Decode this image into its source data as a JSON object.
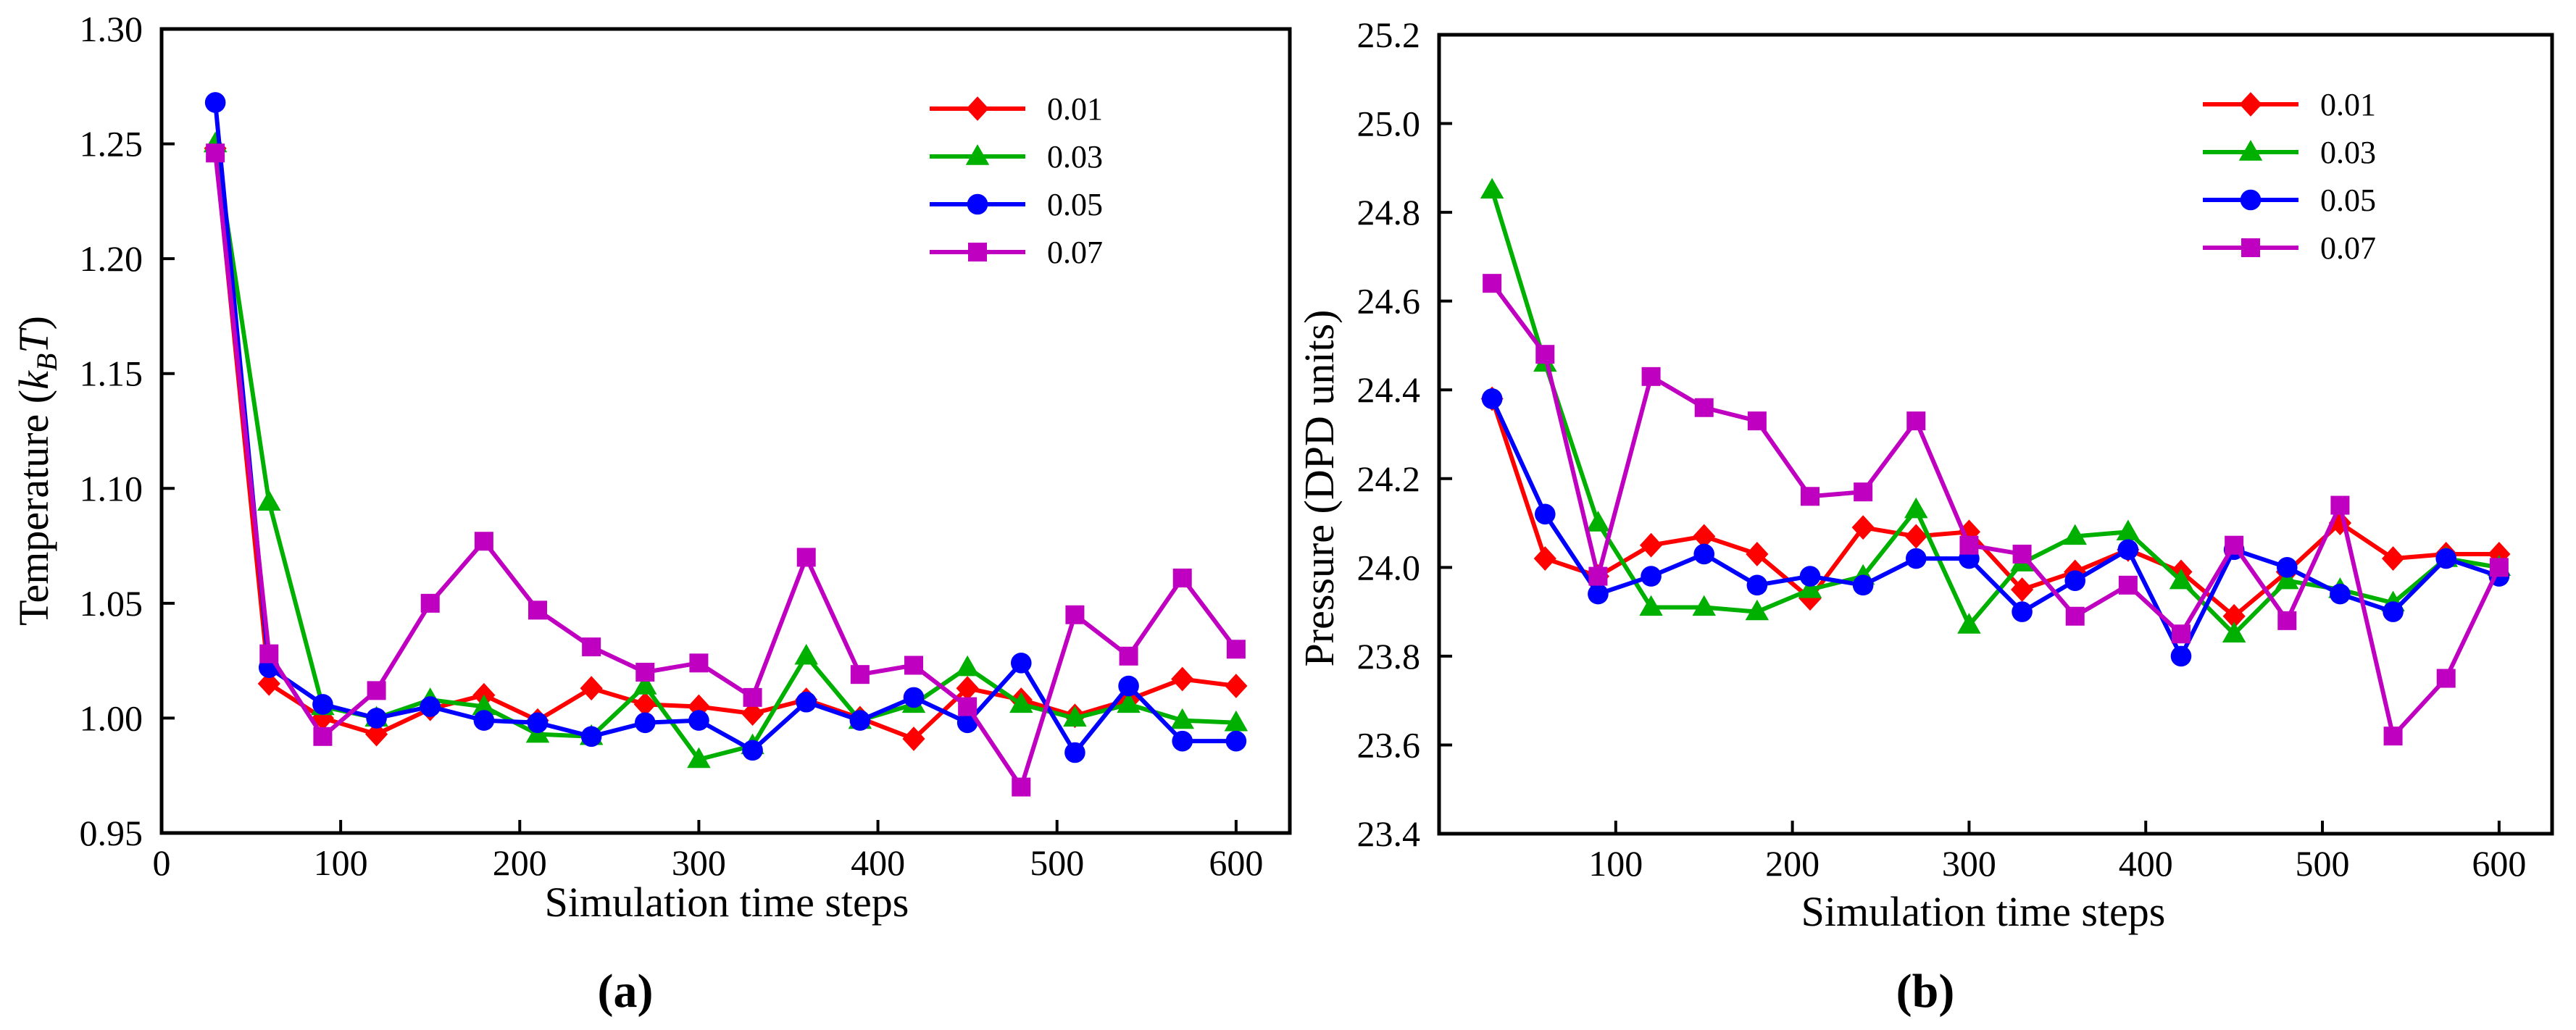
{
  "chart_data": [
    {
      "type": "line",
      "panel_label": "(a)",
      "xlabel": "Simulation time steps",
      "ylabel_main": "Temperature (",
      "ylabel_k": "k",
      "ylabel_sub": "B",
      "ylabel_t": "T",
      "ylabel_close": ")",
      "xlim": [
        0,
        630
      ],
      "ylim": [
        0.95,
        1.3
      ],
      "xticks": [
        0,
        100,
        200,
        300,
        400,
        500,
        600
      ],
      "xtick_labels": [
        "0",
        "100",
        "200",
        "300",
        "400",
        "500",
        "600"
      ],
      "yticks": [
        0.95,
        1.0,
        1.05,
        1.1,
        1.15,
        1.2,
        1.25,
        1.3
      ],
      "ytick_labels": [
        "0.95",
        "1.00",
        "1.05",
        "1.10",
        "1.15",
        "1.20",
        "1.25",
        "1.30"
      ],
      "legend_position": "top-right",
      "grid": false,
      "x": [
        30,
        60,
        90,
        120,
        150,
        180,
        210,
        240,
        270,
        300,
        330,
        360,
        390,
        420,
        450,
        480,
        510,
        540,
        570,
        600
      ],
      "series": [
        {
          "name": "0.01",
          "color": "#ff0000",
          "marker": "diamond",
          "values": [
            1.248,
            1.015,
            1.0,
            0.993,
            1.004,
            1.01,
            0.999,
            1.013,
            1.006,
            1.005,
            1.002,
            1.008,
            1.0,
            0.991,
            1.013,
            1.008,
            1.001,
            1.008,
            1.017,
            1.014
          ]
        },
        {
          "name": "0.03",
          "color": "#00b000",
          "marker": "triangle",
          "values": [
            1.25,
            1.094,
            1.005,
            1.0,
            1.008,
            1.005,
            0.993,
            0.992,
            1.014,
            0.982,
            0.988,
            1.027,
            0.999,
            1.006,
            1.022,
            1.006,
            1.0,
            1.006,
            0.999,
            0.998
          ]
        },
        {
          "name": "0.05",
          "color": "#0000ff",
          "marker": "circle",
          "values": [
            1.268,
            1.022,
            1.006,
            1.0,
            1.005,
            0.999,
            0.998,
            0.992,
            0.998,
            0.999,
            0.986,
            1.007,
            0.999,
            1.009,
            0.998,
            1.024,
            0.985,
            1.014,
            0.99,
            0.99
          ]
        },
        {
          "name": "0.07",
          "color": "#c000c0",
          "marker": "square",
          "values": [
            1.246,
            1.028,
            0.992,
            1.012,
            1.05,
            1.077,
            1.047,
            1.031,
            1.02,
            1.024,
            1.009,
            1.07,
            1.019,
            1.023,
            1.005,
            0.97,
            1.045,
            1.027,
            1.061,
            1.03
          ]
        }
      ]
    },
    {
      "type": "line",
      "panel_label": "(b)",
      "xlabel": "Simulation time steps",
      "ylabel_main": "Pressure (DPD units)",
      "xlim": [
        0,
        630
      ],
      "ylim": [
        23.4,
        25.2
      ],
      "xticks": [
        100,
        200,
        300,
        400,
        500,
        600
      ],
      "xtick_labels": [
        "100",
        "200",
        "300",
        "400",
        "500",
        "600"
      ],
      "yticks": [
        23.4,
        23.6,
        23.8,
        24.0,
        24.2,
        24.4,
        24.6,
        24.8,
        25.0,
        25.2
      ],
      "ytick_labels": [
        "23.4",
        "23.6",
        "23.8",
        "24.0",
        "24.2",
        "24.4",
        "24.6",
        "24.8",
        "25.0",
        "25.2"
      ],
      "legend_position": "top-right",
      "grid": false,
      "x": [
        30,
        60,
        90,
        120,
        150,
        180,
        210,
        240,
        270,
        300,
        330,
        360,
        390,
        420,
        450,
        480,
        510,
        540,
        570,
        600
      ],
      "series": [
        {
          "name": "0.01",
          "color": "#ff0000",
          "marker": "diamond",
          "values": [
            24.38,
            24.02,
            23.98,
            24.05,
            24.07,
            24.03,
            23.93,
            24.09,
            24.07,
            24.08,
            23.95,
            23.99,
            24.04,
            23.99,
            23.89,
            23.99,
            24.1,
            24.02,
            24.03,
            24.03
          ]
        },
        {
          "name": "0.03",
          "color": "#00b000",
          "marker": "triangle",
          "values": [
            24.85,
            24.46,
            24.1,
            23.91,
            23.91,
            23.9,
            23.95,
            23.98,
            24.13,
            23.87,
            24.01,
            24.07,
            24.08,
            23.97,
            23.85,
            23.97,
            23.95,
            23.92,
            24.02,
            24.0
          ]
        },
        {
          "name": "0.05",
          "color": "#0000ff",
          "marker": "circle",
          "values": [
            24.38,
            24.12,
            23.94,
            23.98,
            24.03,
            23.96,
            23.98,
            23.96,
            24.02,
            24.02,
            23.9,
            23.97,
            24.04,
            23.8,
            24.04,
            24.0,
            23.94,
            23.9,
            24.02,
            23.98
          ]
        },
        {
          "name": "0.07",
          "color": "#c000c0",
          "marker": "square",
          "values": [
            24.64,
            24.48,
            23.98,
            24.43,
            24.36,
            24.33,
            24.16,
            24.17,
            24.33,
            24.05,
            24.03,
            23.89,
            23.96,
            23.85,
            24.05,
            23.88,
            24.14,
            23.62,
            23.75,
            24.0
          ]
        }
      ]
    }
  ]
}
